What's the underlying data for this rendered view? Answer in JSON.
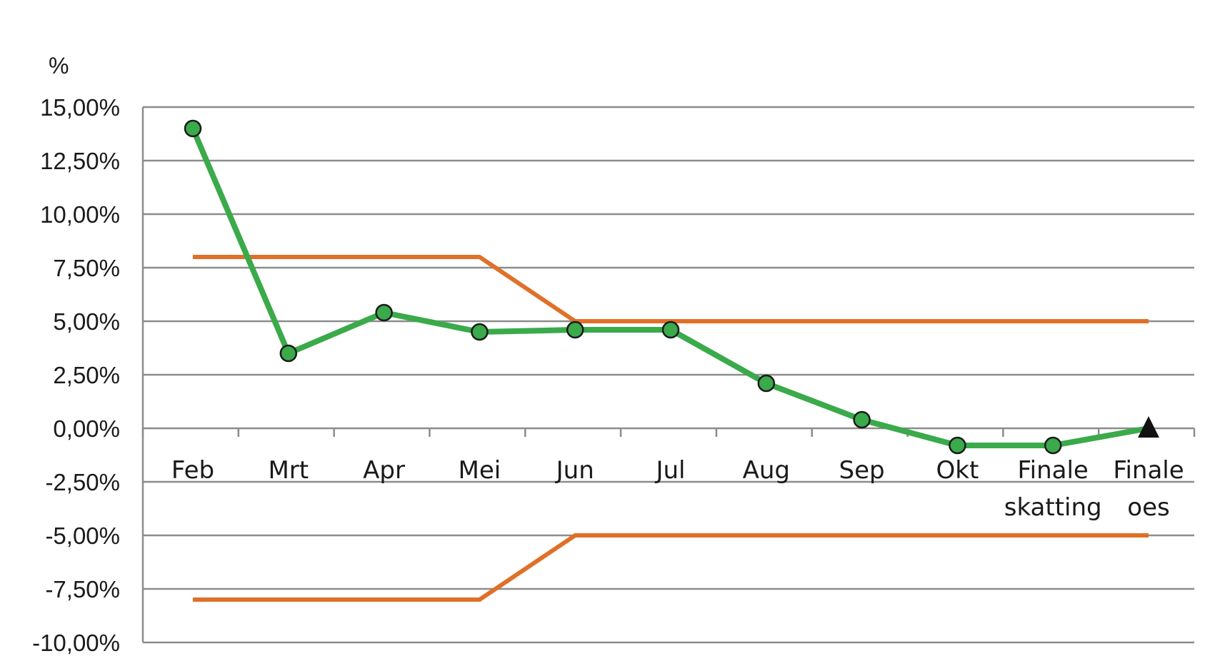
{
  "chart_data": {
    "type": "line",
    "ylabel": "%",
    "ylim": [
      -10,
      15
    ],
    "yticks": [
      15,
      12.5,
      10,
      7.5,
      5,
      2.5,
      0,
      -2.5,
      -5,
      -7.5,
      -10
    ],
    "ytick_labels": [
      "15,00%",
      "12,50%",
      "10,00%",
      "7,50%",
      "5,00%",
      "2,50%",
      "0,00%",
      "-2,50%",
      "-5,00%",
      "-7,50%",
      "-10,00%"
    ],
    "categories": [
      [
        "Feb"
      ],
      [
        "Mrt"
      ],
      [
        "Apr"
      ],
      [
        "Mei"
      ],
      [
        "Jun"
      ],
      [
        "Jul"
      ],
      [
        "Aug"
      ],
      [
        "Sep"
      ],
      [
        "Okt"
      ],
      [
        "Finale",
        "skatting"
      ],
      [
        "Finale",
        "oes"
      ]
    ],
    "grid": true,
    "series": [
      {
        "kind": "main",
        "color": "#3aaa4a",
        "marker": "circle",
        "marker_fill": "#3aaa4a",
        "values": [
          14.0,
          3.5,
          5.4,
          4.5,
          4.6,
          4.6,
          2.1,
          0.4,
          -0.8,
          -0.8,
          null
        ]
      },
      {
        "kind": "final",
        "color": "#111111",
        "marker": "triangle",
        "values": [
          null,
          null,
          null,
          null,
          null,
          null,
          null,
          null,
          null,
          null,
          0.0
        ]
      },
      {
        "kind": "upper-bound",
        "color": "#e07028",
        "values": [
          8,
          8,
          8,
          8,
          5,
          5,
          5,
          5,
          5,
          5,
          5
        ]
      },
      {
        "kind": "lower-bound",
        "color": "#e07028",
        "values": [
          -8,
          -8,
          -8,
          -8,
          -5,
          -5,
          -5,
          -5,
          -5,
          -5,
          -5
        ]
      }
    ],
    "connect_main_to_final": true
  }
}
